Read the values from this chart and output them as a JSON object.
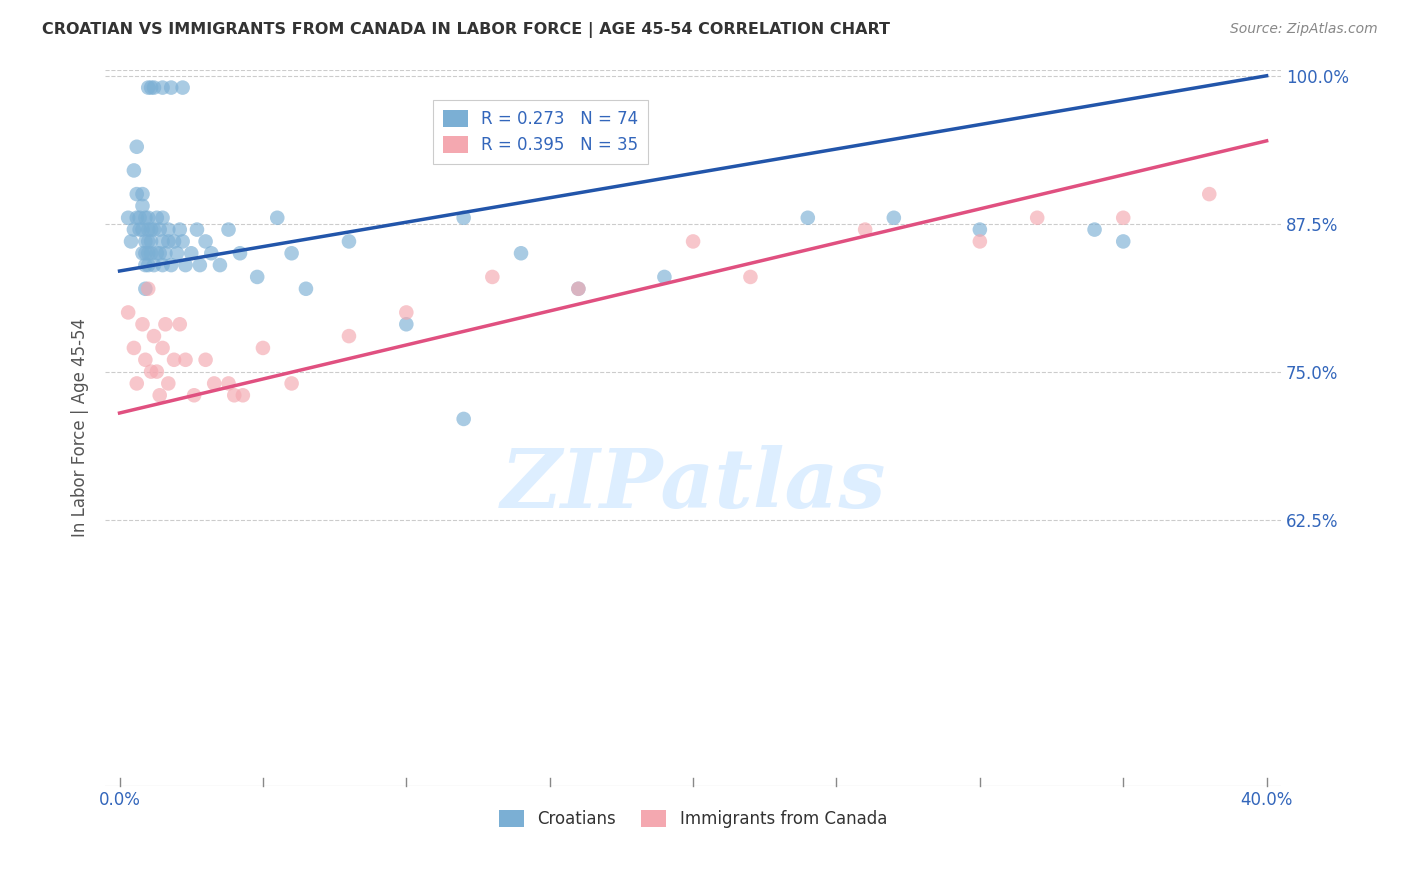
{
  "title": "CROATIAN VS IMMIGRANTS FROM CANADA IN LABOR FORCE | AGE 45-54 CORRELATION CHART",
  "source": "Source: ZipAtlas.com",
  "ylabel": "In Labor Force | Age 45-54",
  "xlim": [
    0.0,
    0.4
  ],
  "ylim": [
    0.4,
    1.005
  ],
  "yticks": [
    0.625,
    0.75,
    0.875,
    1.0
  ],
  "ytick_labels": [
    "62.5%",
    "75.0%",
    "87.5%",
    "100.0%"
  ],
  "xticks": [
    0.0,
    0.05,
    0.1,
    0.15,
    0.2,
    0.25,
    0.3,
    0.35,
    0.4
  ],
  "xtick_labels": [
    "0.0%",
    "",
    "",
    "",
    "",
    "",
    "",
    "",
    "40.0%"
  ],
  "croatians_R": 0.273,
  "croatians_N": 74,
  "immigrants_R": 0.395,
  "immigrants_N": 35,
  "blue_color": "#7BAFD4",
  "pink_color": "#F4A8B0",
  "blue_line_color": "#2255AA",
  "pink_line_color": "#E05080",
  "title_color": "#333333",
  "right_axis_color": "#3366BB",
  "label_color": "#555555",
  "background_color": "#FFFFFF",
  "watermark_color": "#DDEEFF",
  "grid_color": "#CCCCCC",
  "blue_line_y0": 0.835,
  "blue_line_y1": 1.0,
  "pink_line_y0": 0.715,
  "pink_line_y1": 0.945,
  "croatians_x": [
    0.003,
    0.004,
    0.005,
    0.006,
    0.006,
    0.007,
    0.007,
    0.008,
    0.008,
    0.008,
    0.009,
    0.009,
    0.009,
    0.009,
    0.01,
    0.01,
    0.01,
    0.01,
    0.01,
    0.011,
    0.011,
    0.011,
    0.012,
    0.012,
    0.013,
    0.013,
    0.014,
    0.014,
    0.015,
    0.015,
    0.015,
    0.016,
    0.017,
    0.017,
    0.018,
    0.019,
    0.02,
    0.021,
    0.022,
    0.023,
    0.025,
    0.027,
    0.028,
    0.03,
    0.032,
    0.035,
    0.038,
    0.042,
    0.048,
    0.055,
    0.06,
    0.065,
    0.08,
    0.1,
    0.12,
    0.14,
    0.16,
    0.19,
    0.24,
    0.27,
    0.3,
    0.34,
    0.005,
    0.006,
    0.008,
    0.009,
    0.01,
    0.011,
    0.012,
    0.015,
    0.018,
    0.022,
    0.12,
    0.35
  ],
  "croatians_y": [
    0.88,
    0.86,
    0.87,
    0.88,
    0.9,
    0.87,
    0.88,
    0.85,
    0.87,
    0.89,
    0.84,
    0.85,
    0.86,
    0.88,
    0.84,
    0.85,
    0.86,
    0.87,
    0.88,
    0.85,
    0.86,
    0.87,
    0.84,
    0.87,
    0.85,
    0.88,
    0.85,
    0.87,
    0.84,
    0.86,
    0.88,
    0.85,
    0.86,
    0.87,
    0.84,
    0.86,
    0.85,
    0.87,
    0.86,
    0.84,
    0.85,
    0.87,
    0.84,
    0.86,
    0.85,
    0.84,
    0.87,
    0.85,
    0.83,
    0.88,
    0.85,
    0.82,
    0.86,
    0.79,
    0.88,
    0.85,
    0.82,
    0.83,
    0.88,
    0.88,
    0.87,
    0.87,
    0.92,
    0.94,
    0.9,
    0.82,
    0.99,
    0.99,
    0.99,
    0.99,
    0.99,
    0.99,
    0.71,
    0.86
  ],
  "immigrants_x": [
    0.003,
    0.005,
    0.006,
    0.008,
    0.009,
    0.01,
    0.011,
    0.012,
    0.013,
    0.014,
    0.015,
    0.016,
    0.017,
    0.019,
    0.021,
    0.023,
    0.026,
    0.03,
    0.033,
    0.038,
    0.043,
    0.05,
    0.06,
    0.08,
    0.1,
    0.13,
    0.16,
    0.2,
    0.22,
    0.26,
    0.3,
    0.32,
    0.35,
    0.38,
    0.04
  ],
  "immigrants_y": [
    0.8,
    0.77,
    0.74,
    0.79,
    0.76,
    0.82,
    0.75,
    0.78,
    0.75,
    0.73,
    0.77,
    0.79,
    0.74,
    0.76,
    0.79,
    0.76,
    0.73,
    0.76,
    0.74,
    0.74,
    0.73,
    0.77,
    0.74,
    0.78,
    0.8,
    0.83,
    0.82,
    0.86,
    0.83,
    0.87,
    0.86,
    0.88,
    0.88,
    0.9,
    0.73
  ]
}
